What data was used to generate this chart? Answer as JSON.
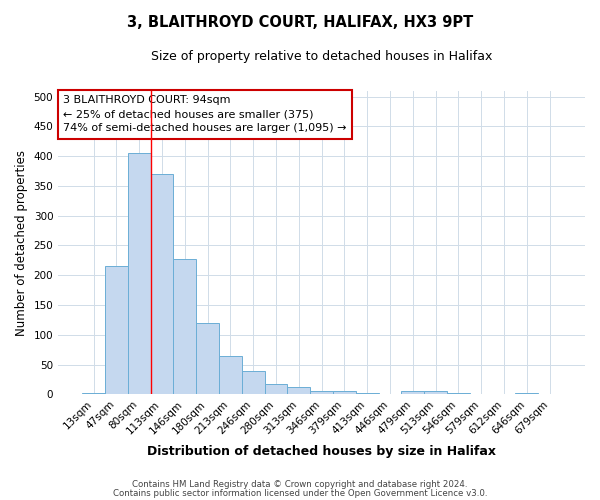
{
  "title": "3, BLAITHROYD COURT, HALIFAX, HX3 9PT",
  "subtitle": "Size of property relative to detached houses in Halifax",
  "xlabel": "Distribution of detached houses by size in Halifax",
  "ylabel": "Number of detached properties",
  "categories": [
    "13sqm",
    "47sqm",
    "80sqm",
    "113sqm",
    "146sqm",
    "180sqm",
    "213sqm",
    "246sqm",
    "280sqm",
    "313sqm",
    "346sqm",
    "379sqm",
    "413sqm",
    "446sqm",
    "479sqm",
    "513sqm",
    "546sqm",
    "579sqm",
    "612sqm",
    "646sqm",
    "679sqm"
  ],
  "values": [
    3,
    215,
    405,
    370,
    228,
    120,
    65,
    40,
    18,
    13,
    5,
    5,
    2,
    0,
    6,
    5,
    2,
    0,
    0,
    3,
    0
  ],
  "bar_color": "#c5d8ef",
  "bar_edge_color": "#6baed6",
  "bg_color": "#ffffff",
  "grid_color": "#d0dce8",
  "red_line_x": 2.5,
  "annotation_line1": "3 BLAITHROYD COURT: 94sqm",
  "annotation_line2": "← 25% of detached houses are smaller (375)",
  "annotation_line3": "74% of semi-detached houses are larger (1,095) →",
  "annotation_box_color": "#ffffff",
  "annotation_box_edge": "#cc0000",
  "ylim": [
    0,
    510
  ],
  "yticks": [
    0,
    50,
    100,
    150,
    200,
    250,
    300,
    350,
    400,
    450,
    500
  ],
  "footnote1": "Contains HM Land Registry data © Crown copyright and database right 2024.",
  "footnote2": "Contains public sector information licensed under the Open Government Licence v3.0."
}
